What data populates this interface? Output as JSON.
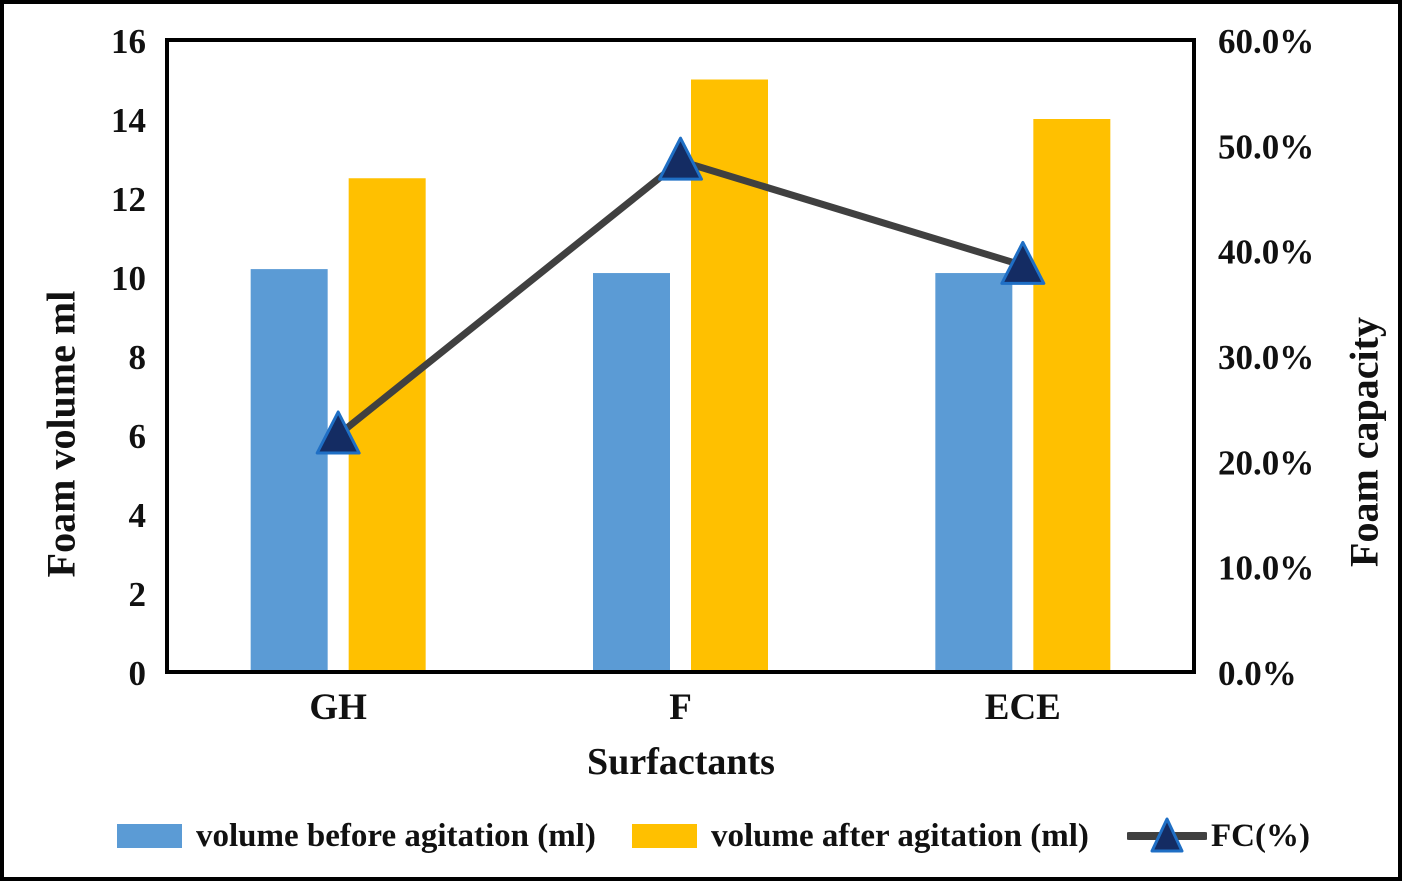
{
  "chart_data": {
    "type": "combo-bar-line",
    "title": "",
    "categories": [
      "GH",
      "F",
      "ECE"
    ],
    "series": [
      {
        "name": "volume before agitation (ml)",
        "type": "bar",
        "axis": "left",
        "color": "#5B9BD5",
        "values": [
          10.2,
          10.1,
          10.1
        ]
      },
      {
        "name": "volume after agitation (ml)",
        "type": "bar",
        "axis": "left",
        "color": "#FFC000",
        "values": [
          12.5,
          15.0,
          14.0
        ]
      },
      {
        "name": "FC(%)",
        "type": "line",
        "axis": "right",
        "color": "#404040",
        "marker": "triangle",
        "marker_fill": "#142C63",
        "marker_edge": "#1F6FC5",
        "values_pct": [
          22.5,
          48.5,
          38.6
        ]
      }
    ],
    "left_axis": {
      "title": "Foam volume ml",
      "min": 0,
      "max": 16,
      "step": 2,
      "tick_labels": [
        "0",
        "2",
        "4",
        "6",
        "8",
        "10",
        "12",
        "14",
        "16"
      ]
    },
    "right_axis": {
      "title": "Foam capacity",
      "min": 0,
      "max": 60,
      "step": 10,
      "tick_labels": [
        "0.0%",
        "10.0%",
        "20.0%",
        "30.0%",
        "40.0%",
        "50.0%",
        "60.0%"
      ]
    },
    "x_axis": {
      "title": "Surfactants"
    },
    "grid": false,
    "legend_position": "bottom",
    "frame_color": "#000000",
    "text_color": "#111111"
  }
}
